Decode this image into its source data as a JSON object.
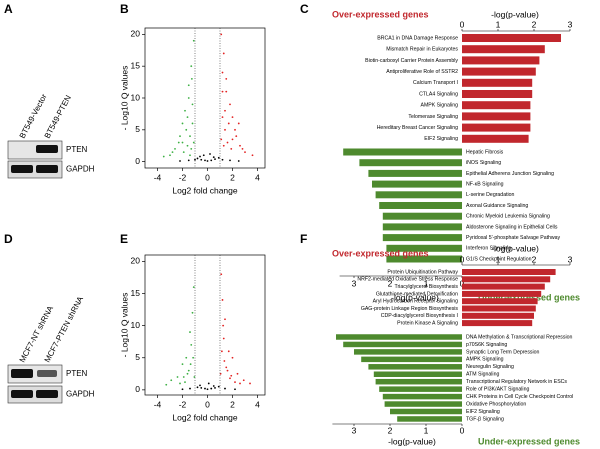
{
  "panels": [
    "A",
    "B",
    "C",
    "D",
    "E",
    "F"
  ],
  "blots": [
    {
      "lanes": [
        "BT549-Vector",
        "BT549-PTEN"
      ],
      "rows": [
        "PTEN",
        "GAPDH"
      ]
    },
    {
      "lanes": [
        "MCF7-NT shRNA",
        "MCF7-PTEN shRNA"
      ],
      "rows": [
        "PTEN",
        "GAPDH"
      ]
    }
  ],
  "chart_data": [
    {
      "type": "scatter",
      "xlabel": "Log2 fold change",
      "ylabel": "- Log10  Q values",
      "xlim": [
        -5,
        4.6
      ],
      "ylim": [
        -1,
        21
      ],
      "xticks": [
        -4,
        -2,
        0,
        2,
        4
      ],
      "yticks": [
        0,
        5,
        10,
        15,
        20
      ],
      "cutoffs": [
        -1,
        1
      ],
      "series": [
        {
          "color": "#3cb043",
          "x": [
            -1.1,
            -1.3,
            -1.5,
            -1.2,
            -1.8,
            -2.0,
            -1.4,
            -2.3,
            -1.6,
            -2.6,
            -1.9,
            -3.0,
            -1.2,
            -1.7,
            -2.2,
            -1.1,
            -1.5,
            -2.8,
            -1.3,
            -2.0,
            -3.5,
            -1.4,
            -1.25,
            -1.6
          ],
          "values": [
            19,
            15,
            12,
            9,
            8,
            6,
            4,
            3,
            2.5,
            2,
            1.5,
            1,
            6,
            5,
            4,
            3,
            10,
            1.5,
            2,
            3,
            0.8,
            1,
            13,
            7
          ]
        },
        {
          "color": "#e32222",
          "x": [
            1.1,
            1.3,
            1.5,
            1.2,
            1.8,
            2.0,
            1.4,
            2.3,
            1.6,
            2.6,
            1.9,
            3.0,
            1.2,
            1.7,
            2.2,
            1.1,
            1.5,
            2.8,
            1.3,
            2.0,
            3.6,
            2.5,
            1.2,
            1.4
          ],
          "values": [
            20,
            17,
            13,
            11,
            9,
            7,
            5,
            4,
            3,
            2.5,
            2,
            1.5,
            7,
            6,
            5,
            3.5,
            11,
            2,
            2.5,
            3.5,
            1,
            6,
            14,
            8
          ]
        },
        {
          "color": "#000000",
          "x": [
            -0.8,
            -0.5,
            -0.2,
            0,
            0.3,
            0.6,
            0.9,
            -0.6,
            0.5,
            -1,
            -1.5,
            1.2,
            1.8,
            -2.2,
            2.5,
            -0.3,
            0.2
          ],
          "values": [
            0.5,
            0.3,
            0.2,
            0.1,
            0.2,
            0.4,
            0.6,
            0.8,
            0.7,
            0.3,
            0.2,
            0.3,
            0.2,
            0.1,
            0.1,
            1,
            1.2
          ]
        }
      ]
    },
    {
      "type": "bar",
      "title": "Over-expressed genes",
      "xlabel": "-log(p-value)",
      "color": "#c1272d",
      "xlim": [
        0,
        3
      ],
      "xticks": [
        0,
        1,
        2,
        3
      ],
      "categories": [
        "BRCA1 in DNA Damage Response",
        "Mismatch Repair in Eukaryotes",
        "Biotin-carboxyl Carrier Protein Assembly",
        "Antiproliferative Role of SSTR2",
        "Calcium Transport I",
        "CTLA4 Signaling",
        "AMPK Signaling",
        "Telomerase Signaling",
        "Hereditary Breast Cancer Signaling",
        "EIF2 Signaling"
      ],
      "values": [
        2.75,
        2.3,
        2.15,
        2.05,
        1.95,
        1.95,
        1.9,
        1.9,
        1.9,
        1.85
      ]
    },
    {
      "type": "bar",
      "title": "Under-expressed genes",
      "xlabel": "-log(p-value)",
      "color": "#4e8a2e",
      "x_reversed": true,
      "xlim": [
        0,
        3.4
      ],
      "xticks": [
        0,
        1,
        2,
        3
      ],
      "categories": [
        "Hepatic Fibrosis",
        "iNOS Signaling",
        "Epithelial Adherens Junction Signaling",
        "NF-κB Signaling",
        "L-serine Degradation",
        "Axonal Guidance Signaling",
        "Chronic Myeloid Leukemia Signaling",
        "Aldosterone Signaling in Epithelial Cells",
        "Pyridoxal 5'-phosphate Salvage Pathway",
        "Interferon Signaling",
        "G1/S Checkpoint Regulation"
      ],
      "values": [
        3.3,
        2.85,
        2.6,
        2.5,
        2.4,
        2.3,
        2.2,
        2.2,
        2.2,
        2.1,
        2.1
      ]
    },
    {
      "type": "scatter",
      "xlabel": "Log2 fold change",
      "ylabel": "- Log10  Q values",
      "xlim": [
        -5,
        4.6
      ],
      "ylim": [
        -0.8,
        21
      ],
      "xticks": [
        -4,
        -2,
        0,
        2,
        4
      ],
      "yticks": [
        0,
        5,
        10,
        15,
        20
      ],
      "cutoffs": [
        -1,
        1
      ],
      "series": [
        {
          "color": "#3cb043",
          "x": [
            -1.1,
            -1.2,
            -1.4,
            -1.3,
            -1.7,
            -2.0,
            -1.5,
            -2.4,
            -1.6,
            -2.9,
            -1.8,
            -3.3,
            -1.15,
            -1.9,
            -2.2,
            -1.05,
            -1.35
          ],
          "values": [
            16,
            12,
            9,
            7,
            5,
            4,
            3,
            2,
            2.5,
            1.5,
            1.2,
            0.8,
            5,
            2,
            1,
            2,
            4
          ]
        },
        {
          "color": "#e32222",
          "x": [
            1.1,
            1.2,
            1.4,
            1.3,
            1.7,
            2.0,
            1.5,
            2.4,
            1.6,
            2.9,
            1.8,
            3.4,
            1.15,
            1.9,
            2.2,
            1.05,
            1.35,
            2.6,
            1.25
          ],
          "values": [
            18,
            14,
            11,
            8,
            6,
            5,
            3.5,
            2.5,
            3,
            1.5,
            1.8,
            1,
            6,
            2.2,
            1.2,
            2.5,
            4.5,
            1,
            10
          ]
        },
        {
          "color": "#000000",
          "x": [
            -0.8,
            -0.5,
            -0.2,
            0,
            0.3,
            0.6,
            0.9,
            -0.6,
            0.5,
            -1.4,
            1.4,
            -2.0,
            2.2,
            0.1
          ],
          "values": [
            0.4,
            0.3,
            0.2,
            0.1,
            0.2,
            0.3,
            0.5,
            0.7,
            0.6,
            0.2,
            0.2,
            0.1,
            0.1,
            1
          ]
        }
      ]
    },
    {
      "type": "bar",
      "title": "Over-expressed genes",
      "xlabel": "-log(p-value)",
      "color": "#c1272d",
      "xlim": [
        0,
        3
      ],
      "xticks": [
        0,
        1,
        2,
        3
      ],
      "categories": [
        "Protein Ubiquitination Pathway",
        "NRF2-mediated Oxidative Stress Response",
        "Triacylglycerol Biosynthesis",
        "Glutathione-mediated Detoxification",
        "Aryl Hydrocarbon Receptor Signaling",
        "GAG-protein Linkage Region Biosynthesis",
        "CDP-diacylglycerol Biosynthesis I",
        "Protein Kinase A Signaling"
      ],
      "values": [
        2.6,
        2.45,
        2.3,
        2.2,
        2.1,
        2.05,
        2.0,
        1.95
      ]
    },
    {
      "type": "bar",
      "title": "Under-expressed genes",
      "xlabel": "-log(p-value)",
      "color": "#4e8a2e",
      "x_reversed": true,
      "xlim": [
        0,
        3.6
      ],
      "xticks": [
        0,
        1,
        2,
        3
      ],
      "categories": [
        "DNA Methylation & Transcriptional Repression",
        "p70S6K Signaling",
        "Synaptic Long Term Depression",
        "AMPK Signaling",
        "Neuregulin Signaling",
        "ATM Signaling",
        "Transcriptional Regulatory Network in ESCs",
        "Role of PI3K/AKT Signaling",
        "CHK Proteins in Cell Cycle Checkpoint Control",
        "Oxidative Phosphorylation",
        "EIF2 Signaling",
        "TGF-β Signaling"
      ],
      "values": [
        3.5,
        3.3,
        3.0,
        2.8,
        2.6,
        2.45,
        2.4,
        2.3,
        2.2,
        2.15,
        2.0,
        1.8
      ]
    }
  ]
}
